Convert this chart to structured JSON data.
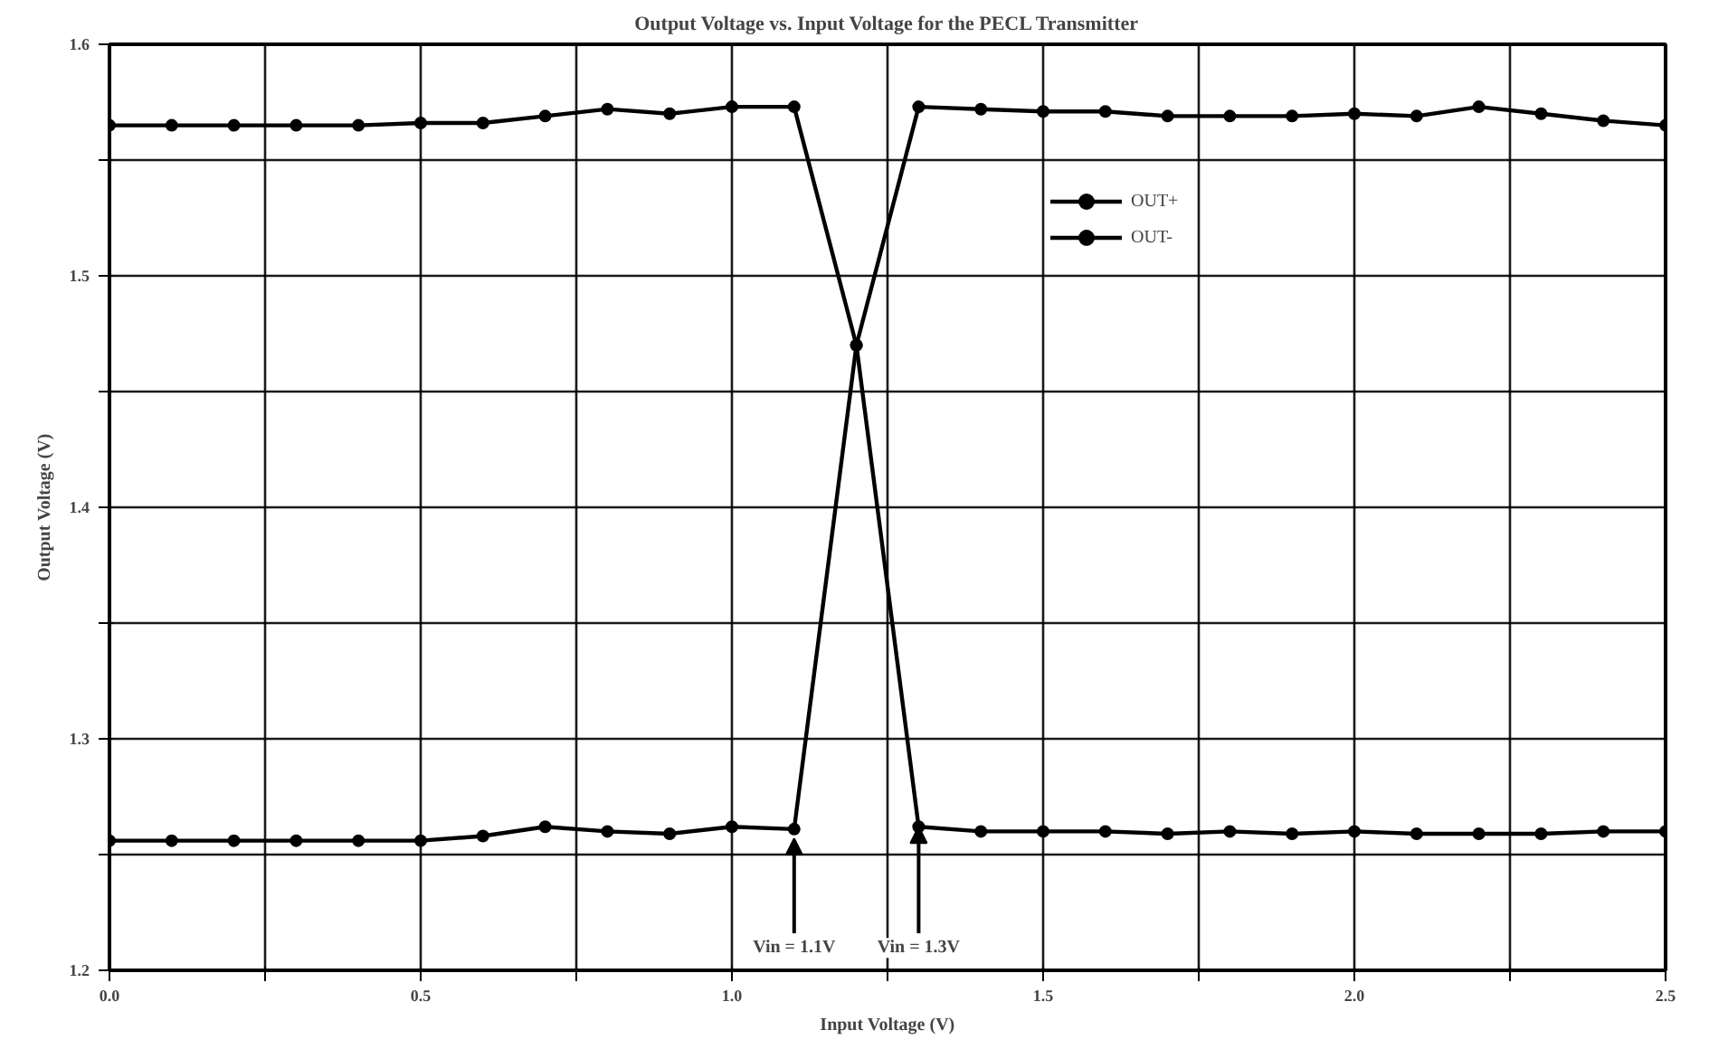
{
  "chart_data": {
    "type": "line",
    "title": "Output Voltage vs. Input Voltage for the PECL Transmitter",
    "xlabel": "Input Voltage (V)",
    "ylabel": "Output Voltage (V)",
    "x": [
      0.0,
      0.1,
      0.2,
      0.3,
      0.4,
      0.5,
      0.6,
      0.7,
      0.8,
      0.9,
      1.0,
      1.1,
      1.2,
      1.3,
      1.4,
      1.5,
      1.6,
      1.7,
      1.8,
      1.9,
      2.0,
      2.1,
      2.2,
      2.3,
      2.4,
      2.5
    ],
    "series": [
      {
        "name": "OUT+",
        "color": "#000000",
        "values": [
          1.256,
          1.256,
          1.256,
          1.256,
          1.256,
          1.256,
          1.258,
          1.262,
          1.26,
          1.259,
          1.262,
          1.261,
          1.47,
          1.573,
          1.572,
          1.571,
          1.571,
          1.569,
          1.569,
          1.569,
          1.57,
          1.569,
          1.573,
          1.57,
          1.567,
          1.565
        ]
      },
      {
        "name": "OUT-",
        "color": "#000000",
        "values": [
          1.565,
          1.565,
          1.565,
          1.565,
          1.565,
          1.566,
          1.566,
          1.569,
          1.572,
          1.57,
          1.573,
          1.573,
          1.47,
          1.262,
          1.26,
          1.26,
          1.26,
          1.259,
          1.26,
          1.259,
          1.26,
          1.259,
          1.259,
          1.259,
          1.26,
          1.26
        ]
      }
    ],
    "annotations": [
      {
        "text": "Vin = 1.1V",
        "x": 1.1,
        "y": 1.257
      },
      {
        "text": "Vin = 1.3V",
        "x": 1.3,
        "y": 1.262
      }
    ],
    "xlim": [
      0,
      2.5
    ],
    "ylim": [
      1.2,
      1.6
    ],
    "xticks": [
      {
        "value": 0,
        "label": "0.0"
      },
      {
        "value": 0.25,
        "label": null
      },
      {
        "value": 0.5,
        "label": "0.5"
      },
      {
        "value": 0.75,
        "label": null
      },
      {
        "value": 1.0,
        "label": "1.0"
      },
      {
        "value": 1.25,
        "label": null
      },
      {
        "value": 1.5,
        "label": "1.5"
      },
      {
        "value": 1.75,
        "label": null
      },
      {
        "value": 2.0,
        "label": "2.0"
      },
      {
        "value": 2.25,
        "label": null
      },
      {
        "value": 2.5,
        "label": "2.5"
      }
    ],
    "yticks": [
      1.2,
      {
        "value": 1.25,
        "label": null
      },
      1.3,
      {
        "value": 1.35,
        "label": null
      },
      1.4,
      {
        "value": 1.45,
        "label": null
      },
      1.5,
      {
        "value": 1.55,
        "label": null
      },
      1.6
    ],
    "grid": true,
    "legend": "top right",
    "marker": "circle",
    "line_style": "solid"
  }
}
